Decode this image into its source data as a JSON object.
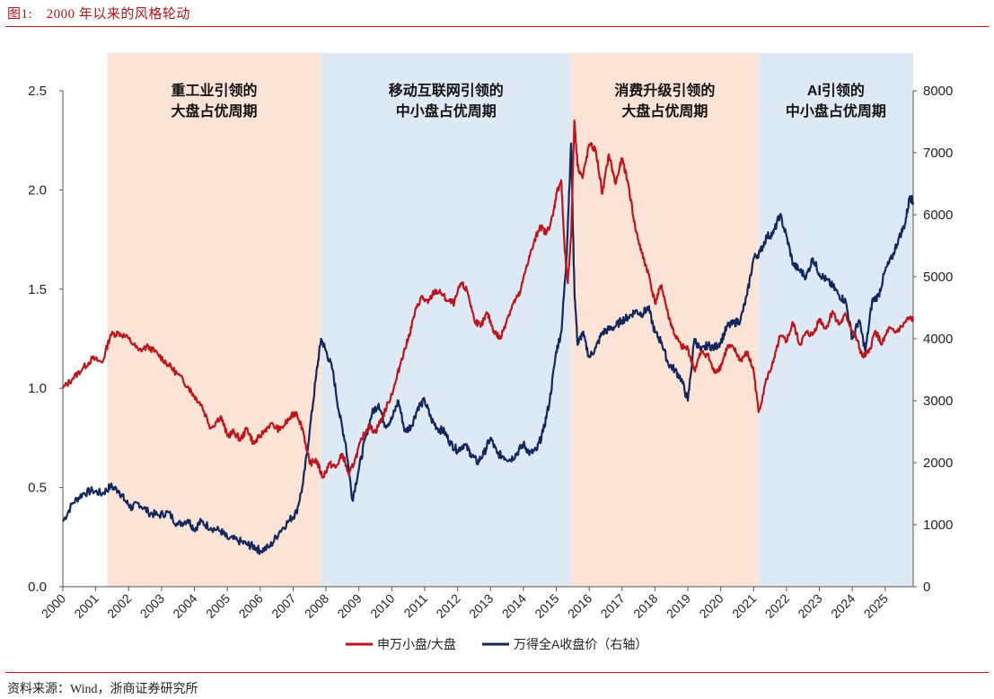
{
  "figure": {
    "title": "图1:　2000 年以来的风格轮动",
    "source": "资料来源：Wind，浙商证券研究所"
  },
  "colors": {
    "ratio": "#c0141b",
    "wind_ai": "#12275e",
    "band_large": "#fbe3d5",
    "band_small": "#dde9f5",
    "accent": "#c0141b"
  },
  "chart_data": {
    "type": "line",
    "x_tick_labels": [
      "2000",
      "2001",
      "2002",
      "2003",
      "2004",
      "2005",
      "2006",
      "2007",
      "2008",
      "2009",
      "2010",
      "2011",
      "2012",
      "2013",
      "2014",
      "2015",
      "2016",
      "2017",
      "2018",
      "2019",
      "2020",
      "2021",
      "2022",
      "2023",
      "2024",
      "2025"
    ],
    "xlim": [
      2000.0,
      2025.85
    ],
    "y_left": {
      "lim": [
        0,
        2.5
      ],
      "ticks": [
        "0.0",
        "0.5",
        "1.0",
        "1.5",
        "2.0",
        "2.5"
      ]
    },
    "y_right": {
      "lim": [
        0,
        8000
      ],
      "ticks": [
        "0",
        "1000",
        "2000",
        "3000",
        "4000",
        "5000",
        "6000",
        "7000",
        "8000"
      ]
    },
    "bands": [
      {
        "start": 2001.35,
        "end": 2007.85,
        "kind": "large",
        "line1": "重工业引领的",
        "line2": "大盘占优周期"
      },
      {
        "start": 2007.85,
        "end": 2015.45,
        "kind": "small",
        "line1": "移动互联网引领的",
        "line2": "中小盘占优周期"
      },
      {
        "start": 2015.45,
        "end": 2021.15,
        "kind": "large",
        "line1": "消费升级引领的",
        "line2": "大盘占优周期"
      },
      {
        "start": 2021.15,
        "end": 2025.85,
        "kind": "small",
        "line1": "AI引领的",
        "line2": "中小盘占优周期"
      }
    ],
    "series": [
      {
        "name": "申万小盘/大盘",
        "axis": "left",
        "x": [
          2000.0,
          2000.3,
          2000.6,
          2000.9,
          2001.2,
          2001.45,
          2001.7,
          2002.0,
          2002.3,
          2002.6,
          2002.9,
          2003.2,
          2003.5,
          2003.8,
          2004.0,
          2004.2,
          2004.5,
          2004.8,
          2005.0,
          2005.2,
          2005.4,
          2005.6,
          2005.8,
          2006.0,
          2006.3,
          2006.6,
          2006.9,
          2007.1,
          2007.3,
          2007.5,
          2007.7,
          2007.9,
          2008.1,
          2008.3,
          2008.5,
          2008.7,
          2008.9,
          2009.1,
          2009.3,
          2009.5,
          2009.7,
          2009.9,
          2010.1,
          2010.3,
          2010.5,
          2010.7,
          2010.9,
          2011.1,
          2011.3,
          2011.5,
          2011.7,
          2011.9,
          2012.1,
          2012.3,
          2012.5,
          2012.7,
          2012.9,
          2013.1,
          2013.3,
          2013.5,
          2013.7,
          2013.9,
          2014.1,
          2014.3,
          2014.5,
          2014.7,
          2014.9,
          2015.0,
          2015.15,
          2015.25,
          2015.35,
          2015.45,
          2015.55,
          2015.65,
          2015.8,
          2016.0,
          2016.2,
          2016.4,
          2016.6,
          2016.8,
          2017.0,
          2017.2,
          2017.4,
          2017.6,
          2017.8,
          2018.0,
          2018.2,
          2018.4,
          2018.6,
          2018.8,
          2019.0,
          2019.2,
          2019.4,
          2019.6,
          2019.8,
          2020.0,
          2020.2,
          2020.4,
          2020.6,
          2020.8,
          2021.0,
          2021.15,
          2021.4,
          2021.6,
          2021.8,
          2022.0,
          2022.2,
          2022.4,
          2022.6,
          2022.8,
          2023.0,
          2023.2,
          2023.4,
          2023.6,
          2023.8,
          2024.0,
          2024.15,
          2024.3,
          2024.5,
          2024.7,
          2024.9,
          2025.1,
          2025.3,
          2025.5,
          2025.7,
          2025.85
        ],
        "values": [
          1.0,
          1.05,
          1.1,
          1.15,
          1.13,
          1.27,
          1.28,
          1.25,
          1.19,
          1.21,
          1.17,
          1.12,
          1.07,
          1.01,
          0.96,
          0.92,
          0.8,
          0.86,
          0.76,
          0.78,
          0.74,
          0.8,
          0.72,
          0.76,
          0.82,
          0.79,
          0.85,
          0.88,
          0.79,
          0.62,
          0.64,
          0.55,
          0.62,
          0.6,
          0.67,
          0.56,
          0.65,
          0.75,
          0.81,
          0.78,
          0.85,
          0.93,
          1.02,
          1.15,
          1.25,
          1.38,
          1.46,
          1.43,
          1.49,
          1.48,
          1.44,
          1.43,
          1.53,
          1.49,
          1.35,
          1.31,
          1.38,
          1.29,
          1.25,
          1.35,
          1.43,
          1.48,
          1.62,
          1.72,
          1.82,
          1.78,
          1.87,
          1.98,
          2.05,
          1.71,
          1.53,
          1.77,
          2.35,
          2.12,
          2.06,
          2.23,
          2.2,
          1.98,
          2.18,
          2.03,
          2.16,
          2.02,
          1.81,
          1.68,
          1.58,
          1.43,
          1.52,
          1.37,
          1.27,
          1.21,
          1.2,
          1.09,
          1.18,
          1.17,
          1.08,
          1.11,
          1.21,
          1.2,
          1.14,
          1.18,
          1.09,
          0.88,
          1.05,
          1.13,
          1.26,
          1.24,
          1.33,
          1.22,
          1.28,
          1.27,
          1.35,
          1.3,
          1.39,
          1.32,
          1.37,
          1.29,
          1.24,
          1.16,
          1.18,
          1.29,
          1.22,
          1.3,
          1.28,
          1.31,
          1.35,
          1.35
        ]
      },
      {
        "name": "万得全A收盘价（右轴）",
        "axis": "right",
        "x": [
          2000.0,
          2000.3,
          2000.6,
          2000.9,
          2001.2,
          2001.45,
          2001.7,
          2001.9,
          2002.1,
          2002.3,
          2002.6,
          2002.9,
          2003.2,
          2003.5,
          2003.8,
          2004.0,
          2004.2,
          2004.5,
          2004.8,
          2005.0,
          2005.3,
          2005.6,
          2005.8,
          2006.0,
          2006.3,
          2006.6,
          2006.9,
          2007.1,
          2007.3,
          2007.5,
          2007.7,
          2007.85,
          2008.0,
          2008.2,
          2008.4,
          2008.6,
          2008.8,
          2009.0,
          2009.2,
          2009.4,
          2009.6,
          2009.8,
          2010.0,
          2010.2,
          2010.4,
          2010.6,
          2010.8,
          2011.0,
          2011.2,
          2011.4,
          2011.6,
          2011.8,
          2012.0,
          2012.2,
          2012.4,
          2012.6,
          2012.8,
          2013.0,
          2013.2,
          2013.4,
          2013.6,
          2013.8,
          2014.0,
          2014.2,
          2014.4,
          2014.6,
          2014.8,
          2015.0,
          2015.15,
          2015.3,
          2015.45,
          2015.55,
          2015.65,
          2015.8,
          2016.0,
          2016.2,
          2016.4,
          2016.6,
          2016.8,
          2017.0,
          2017.2,
          2017.4,
          2017.6,
          2017.8,
          2018.0,
          2018.2,
          2018.4,
          2018.6,
          2018.8,
          2019.0,
          2019.2,
          2019.4,
          2019.6,
          2019.8,
          2020.0,
          2020.2,
          2020.4,
          2020.6,
          2020.8,
          2021.0,
          2021.2,
          2021.4,
          2021.6,
          2021.8,
          2022.0,
          2022.2,
          2022.4,
          2022.6,
          2022.8,
          2023.0,
          2023.2,
          2023.4,
          2023.6,
          2023.8,
          2024.0,
          2024.2,
          2024.4,
          2024.6,
          2024.8,
          2025.0,
          2025.2,
          2025.4,
          2025.6,
          2025.75,
          2025.85
        ],
        "values": [
          1050,
          1350,
          1500,
          1550,
          1500,
          1620,
          1550,
          1380,
          1270,
          1350,
          1200,
          1150,
          1200,
          1000,
          1080,
          930,
          1050,
          950,
          900,
          780,
          750,
          680,
          650,
          580,
          650,
          900,
          1080,
          1200,
          1650,
          2500,
          3400,
          4000,
          3800,
          3500,
          2800,
          2300,
          1400,
          1900,
          2400,
          2800,
          2950,
          2600,
          2700,
          3000,
          2500,
          2600,
          2900,
          3000,
          2700,
          2550,
          2500,
          2300,
          2200,
          2300,
          2150,
          2000,
          2150,
          2400,
          2150,
          2100,
          2050,
          2150,
          2300,
          2150,
          2200,
          2500,
          3000,
          3800,
          4100,
          5200,
          7150,
          4800,
          3900,
          4100,
          3700,
          3850,
          4100,
          4150,
          4200,
          4300,
          4350,
          4450,
          4400,
          4500,
          4100,
          3950,
          3600,
          3500,
          3350,
          3000,
          4000,
          3800,
          3900,
          3850,
          3950,
          4200,
          4250,
          4300,
          4700,
          5300,
          5400,
          5650,
          5700,
          6000,
          5650,
          5200,
          5100,
          5000,
          5300,
          5050,
          4950,
          4850,
          4700,
          4600,
          4000,
          4300,
          3800,
          4600,
          4700,
          5100,
          5300,
          5600,
          5850,
          6300,
          6200
        ]
      }
    ]
  }
}
